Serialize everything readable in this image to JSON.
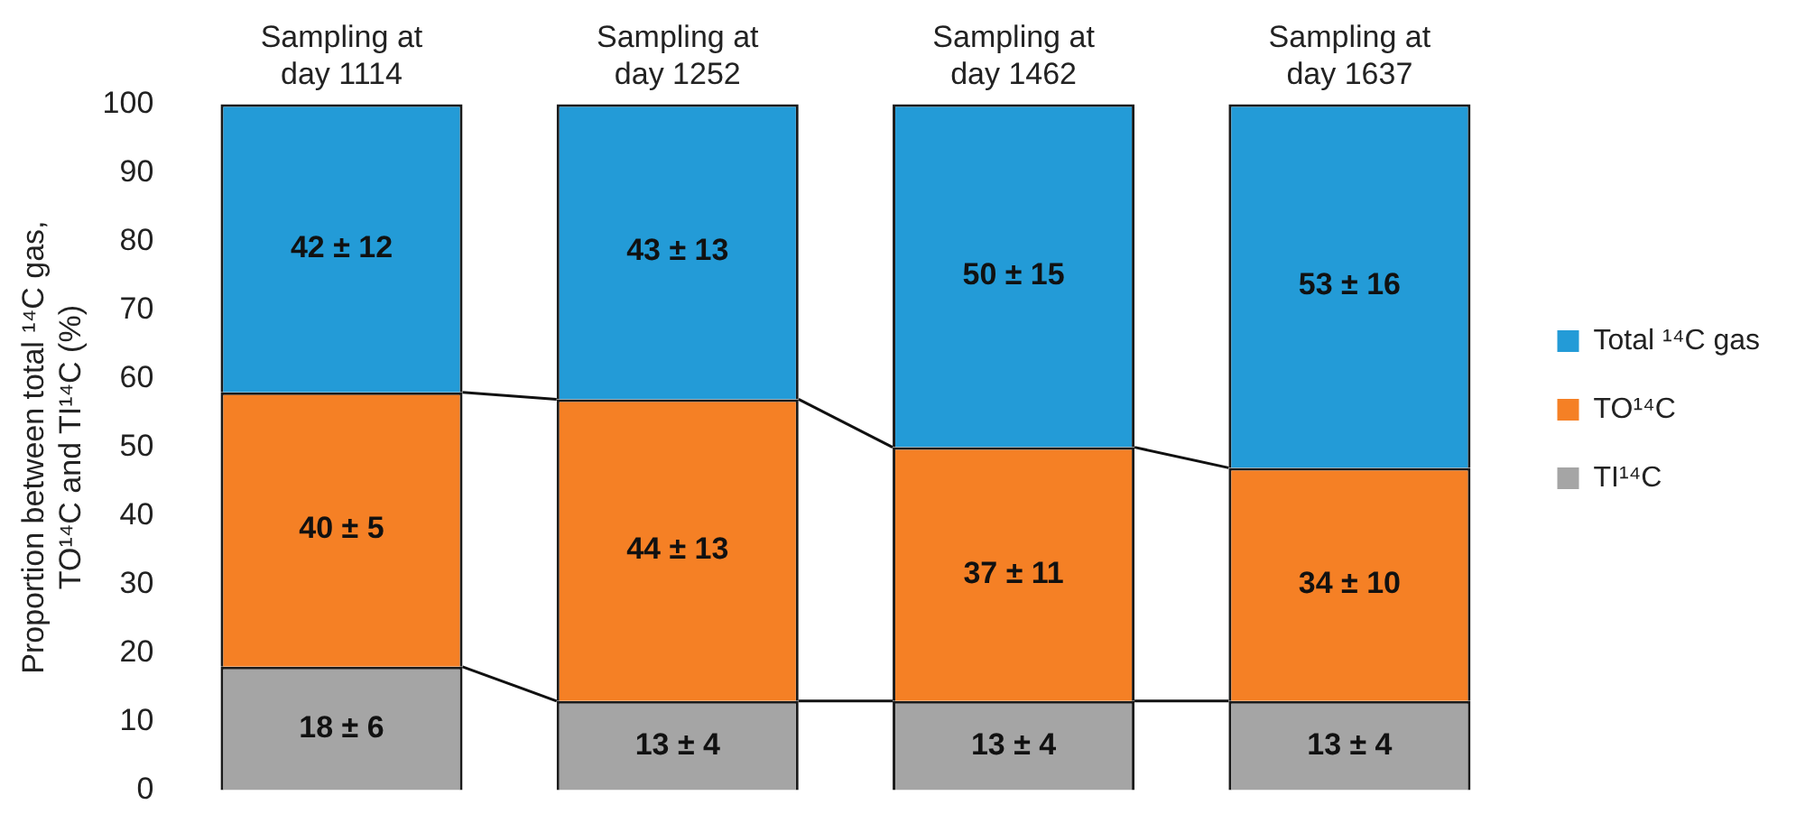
{
  "chart_data": {
    "type": "bar",
    "stacked": true,
    "ylabel": "Proportion between total ¹⁴C gas, TO¹⁴C and TI¹⁴C (%)",
    "categories": [
      "Sampling at day 1114",
      "Sampling at day 1252",
      "Sampling at day 1462",
      "Sampling at day 1637"
    ],
    "series": [
      {
        "name": "TI¹⁴C",
        "color": "#a5a5a5",
        "values": [
          18,
          13,
          13,
          13
        ],
        "value_labels": [
          "18 ± 6",
          "13 ± 4",
          "13 ± 4",
          "13 ± 4"
        ]
      },
      {
        "name": "TO¹⁴C",
        "color": "#f58025",
        "values": [
          40,
          44,
          37,
          34
        ],
        "value_labels": [
          "40 ± 5",
          "44 ± 13",
          "37 ± 11",
          "34 ± 10"
        ]
      },
      {
        "name": "Total ¹⁴C gas",
        "color": "#239bd7",
        "values": [
          42,
          43,
          50,
          53
        ],
        "value_labels": [
          "42 ± 12",
          "43 ± 13",
          "50 ± 15",
          "53 ± 16"
        ]
      }
    ],
    "ylim": [
      0,
      100
    ],
    "yticks": [
      0,
      10,
      20,
      30,
      40,
      50,
      60,
      70,
      80,
      90,
      100
    ],
    "grid": false,
    "legend": "right"
  }
}
